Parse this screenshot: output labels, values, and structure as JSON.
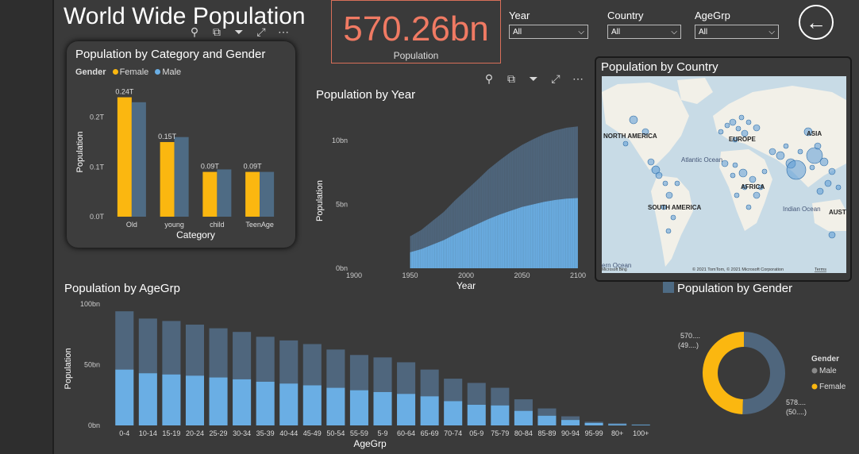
{
  "header": {
    "title": "World Wide Population"
  },
  "kpi": {
    "value": "570.26bn",
    "label": "Population"
  },
  "slicers": [
    {
      "label": "Year",
      "value": "All"
    },
    {
      "label": "Country",
      "value": "All"
    },
    {
      "label": "AgeGrp",
      "value": "All"
    }
  ],
  "back_icon": "arrow-left-circle-icon",
  "visual_header_icons": [
    "pin-icon",
    "copy-icon",
    "filter-icon",
    "focus-mode-icon",
    "more-options-icon"
  ],
  "category_gender": {
    "title": "Population by Category and Gender",
    "legend_title": "Gender",
    "legend": [
      {
        "name": "Female",
        "color": "#fbb710"
      },
      {
        "name": "Male",
        "color": "#4e6b84"
      }
    ]
  },
  "population_year": {
    "title": "Population by Year"
  },
  "population_country": {
    "title": "Population by Country",
    "labels": [
      "NORTH AMERICA",
      "EUROPE",
      "ASIA",
      "AFRICA",
      "SOUTH AMERICA",
      "Atlantic Ocean",
      "Indian Ocean",
      "AUST",
      "ern Ocean"
    ],
    "bing": "Microsoft Bing",
    "attribution": "© 2021 TomTom, © 2021 Microsoft Corporation",
    "terms": "Terms"
  },
  "population_agegrp": {
    "title": "Population by AgeGrp"
  },
  "population_gender": {
    "title": "Population by Gender",
    "legend_title": "Gender",
    "legend": [
      {
        "name": "Male",
        "color": "#8a8a8a"
      },
      {
        "name": "Female",
        "color": "#fbb710"
      }
    ],
    "label_top_line1": "570....",
    "label_top_line2": "(49....)",
    "label_bottom_line1": "578....",
    "label_bottom_line2": "(50....)"
  },
  "chart_data": [
    {
      "type": "bar",
      "title": "Population by Category and Gender",
      "xlabel": "Category",
      "ylabel": "Population",
      "categories": [
        "Old",
        "young",
        "child",
        "TeenAge"
      ],
      "series": [
        {
          "name": "Female",
          "color": "#fbb710",
          "values": [
            0.24,
            0.15,
            0.09,
            0.09
          ]
        },
        {
          "name": "Male",
          "color": "#4e6b84",
          "values": [
            0.23,
            0.16,
            0.095,
            0.09
          ]
        }
      ],
      "data_labels": [
        "0.24T",
        "0.15T",
        "0.09T",
        "0.09T"
      ],
      "ylim": [
        0,
        0.26
      ],
      "yticks": [
        0,
        0.1,
        0.2
      ],
      "ytick_labels": [
        "0.0T",
        "0.1T",
        "0.2T"
      ]
    },
    {
      "type": "area",
      "title": "Population by Year",
      "xlabel": "Year",
      "ylabel": "Population",
      "xlim": [
        1900,
        2100
      ],
      "xticks": [
        1900,
        1950,
        2000,
        2050,
        2100
      ],
      "ylim": [
        0,
        11.8
      ],
      "yticks": [
        0,
        5,
        10
      ],
      "ytick_labels": [
        "0bn",
        "5bn",
        "10bn"
      ],
      "series": [
        {
          "name": "Female",
          "color": "#6aaee4",
          "x": [
            1950,
            1960,
            1970,
            1980,
            1990,
            2000,
            2010,
            2020,
            2030,
            2040,
            2050,
            2060,
            2070,
            2080,
            2090,
            2100
          ],
          "values": [
            1.25,
            1.5,
            1.85,
            2.2,
            2.65,
            3.05,
            3.45,
            3.85,
            4.2,
            4.5,
            4.8,
            5.0,
            5.2,
            5.35,
            5.45,
            5.5
          ]
        },
        {
          "name": "Male",
          "color": "#4f667d",
          "x": [
            1950,
            1960,
            1970,
            1980,
            1990,
            2000,
            2010,
            2020,
            2030,
            2040,
            2050,
            2060,
            2070,
            2080,
            2090,
            2100
          ],
          "values": [
            1.25,
            1.5,
            1.85,
            2.2,
            2.65,
            3.05,
            3.45,
            3.9,
            4.25,
            4.6,
            4.85,
            5.1,
            5.3,
            5.45,
            5.55,
            5.6
          ]
        }
      ]
    },
    {
      "type": "bar",
      "title": "Population by AgeGrp",
      "xlabel": "AgeGrp",
      "ylabel": "Population",
      "categories": [
        "0-4",
        "10-14",
        "15-19",
        "20-24",
        "25-29",
        "30-34",
        "35-39",
        "40-44",
        "45-49",
        "50-54",
        "55-59",
        "5-9",
        "60-64",
        "65-69",
        "70-74",
        "05-9",
        "75-79",
        "80-84",
        "85-89",
        "90-94",
        "95-99",
        "80+",
        "100+"
      ],
      "series": [
        {
          "name": "Female",
          "color": "#6aaee4",
          "values": [
            46,
            43,
            42,
            41,
            39.5,
            38,
            36,
            34.5,
            33,
            31,
            29,
            27.5,
            26,
            24,
            20,
            17,
            16.5,
            12,
            8,
            4.5,
            2,
            1,
            0.5
          ]
        },
        {
          "name": "Male",
          "color": "#4f667d",
          "values": [
            48,
            45,
            44,
            42,
            40.5,
            39,
            37,
            35.5,
            34,
            31.5,
            29,
            28.5,
            26,
            22,
            18.5,
            18,
            14.5,
            9.5,
            6,
            3,
            1,
            0.8,
            0.3
          ]
        }
      ],
      "ylim": [
        0,
        100
      ],
      "yticks": [
        0,
        50,
        100
      ],
      "ytick_labels": [
        "0bn",
        "50bn",
        "100bn"
      ]
    },
    {
      "type": "pie",
      "title": "Population by Gender",
      "labels": [
        "Female",
        "Male"
      ],
      "values": [
        49.5,
        50.5
      ],
      "colors": [
        "#fbb710",
        "#4f667d"
      ]
    }
  ]
}
